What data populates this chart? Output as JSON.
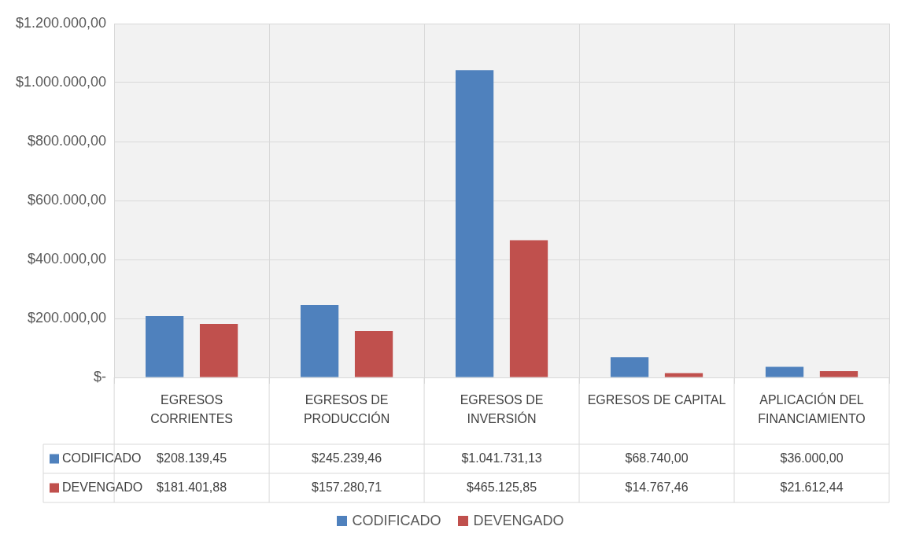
{
  "chart_data": {
    "type": "bar",
    "categories": [
      "EGRESOS CORRIENTES",
      "EGRESOS DE PRODUCCIÓN",
      "EGRESOS DE INVERSIÓN",
      "EGRESOS DE CAPITAL",
      "APLICACIÓN DEL FINANCIAMIENTO"
    ],
    "series": [
      {
        "name": "CODIFICADO",
        "color": "#4f81bd",
        "values": [
          208139.45,
          245239.46,
          1041731.13,
          68740.0,
          36000.0
        ],
        "value_labels": [
          "$208.139,45",
          "$245.239,46",
          "$1.041.731,13",
          "$68.740,00",
          "$36.000,00"
        ]
      },
      {
        "name": "DEVENGADO",
        "color": "#c0504d",
        "values": [
          181401.88,
          157280.71,
          465125.85,
          14767.46,
          21612.44
        ],
        "value_labels": [
          "$181.401,88",
          "$157.280,71",
          "$465.125,85",
          "$14.767,46",
          "$21.612,44"
        ]
      }
    ],
    "ylim": [
      0,
      1200000
    ],
    "yticks": [
      {
        "value": 0,
        "label": "$-"
      },
      {
        "value": 200000,
        "label": "$200.000,00"
      },
      {
        "value": 400000,
        "label": "$400.000,00"
      },
      {
        "value": 600000,
        "label": "$600.000,00"
      },
      {
        "value": 800000,
        "label": "$800.000,00"
      },
      {
        "value": 1000000,
        "label": "$1.000.000,00"
      },
      {
        "value": 1200000,
        "label": "$1.200.000,00"
      }
    ],
    "grid": true,
    "legend": "bottom"
  }
}
